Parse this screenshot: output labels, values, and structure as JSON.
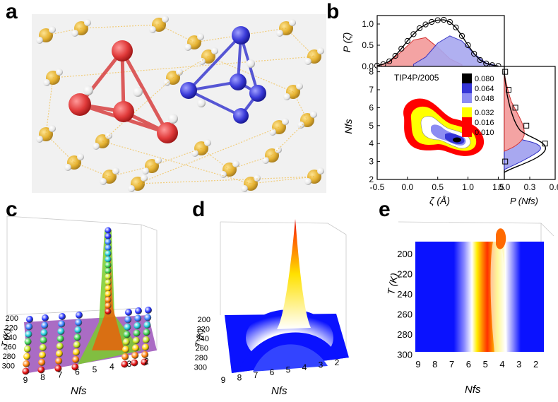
{
  "panels": {
    "a": {
      "letter": "a"
    },
    "b": {
      "letter": "b"
    },
    "c": {
      "letter": "c"
    },
    "d": {
      "letter": "d"
    },
    "e": {
      "letter": "e"
    }
  },
  "colors": {
    "red_cluster": "#e03a3a",
    "blue_cluster": "#3a3ad8",
    "oxygen": "#e2a91a",
    "hbond": "#f1b52d",
    "red": "#ff0000",
    "yellow": "#ffff00",
    "blue": "#0000ff",
    "black": "#000000"
  },
  "chart_data": [
    {
      "id": "b-top",
      "type": "area",
      "ylabel": "P (ζ)",
      "yticks": [
        "0.0",
        "0.5",
        "1.0"
      ],
      "ylim": [
        0,
        1.2
      ],
      "xlim": [
        -0.5,
        1.6
      ],
      "series": [
        {
          "name": "total",
          "x": [
            -0.5,
            -0.4,
            -0.3,
            -0.2,
            -0.1,
            0.0,
            0.1,
            0.2,
            0.3,
            0.4,
            0.5,
            0.6,
            0.7,
            0.8,
            0.9,
            1.0,
            1.1,
            1.2,
            1.3,
            1.4,
            1.5
          ],
          "values": [
            0.02,
            0.05,
            0.12,
            0.25,
            0.42,
            0.6,
            0.76,
            0.9,
            0.99,
            1.05,
            1.09,
            1.1,
            1.05,
            0.92,
            0.72,
            0.5,
            0.3,
            0.15,
            0.07,
            0.03,
            0.01
          ]
        },
        {
          "name": "red",
          "x": [
            -0.5,
            -0.3,
            -0.1,
            0.1,
            0.3,
            0.5,
            0.7,
            0.9
          ],
          "values": [
            0.02,
            0.1,
            0.35,
            0.62,
            0.68,
            0.45,
            0.18,
            0.04
          ]
        },
        {
          "name": "blue",
          "x": [
            0.1,
            0.3,
            0.5,
            0.7,
            0.9,
            1.1,
            1.3,
            1.5
          ],
          "values": [
            0.05,
            0.22,
            0.55,
            0.72,
            0.6,
            0.3,
            0.08,
            0.01
          ]
        }
      ]
    },
    {
      "id": "b-main",
      "type": "heatmap",
      "title": "TIP4P/2005",
      "xlabel": "ζ (Å)",
      "ylabel": "Nfs",
      "xticks": [
        "-0.5",
        "0.0",
        "0.5",
        "1.0",
        "1.5"
      ],
      "yticks": [
        "2",
        "3",
        "4",
        "5",
        "6",
        "7",
        "8"
      ],
      "xlim": [
        -0.5,
        1.6
      ],
      "ylim": [
        2,
        8.3
      ],
      "legend": [
        {
          "label": "0.080",
          "color": "#000000"
        },
        {
          "label": "0.064",
          "color": "#3636d6"
        },
        {
          "label": "0.048",
          "color": "#8c8cf2"
        },
        {
          "label": "0.032",
          "color": "#ffff00"
        },
        {
          "label": "0.016",
          "color": "#ff0000"
        },
        {
          "label": "0.010",
          "color": "#ff0000"
        }
      ]
    },
    {
      "id": "b-right",
      "type": "line",
      "xlabel": "P (Nfs)",
      "xticks": [
        "0.0",
        "0.3",
        "0.6"
      ],
      "xlim": [
        0,
        0.6
      ],
      "points": [
        {
          "n": 3,
          "p": 0.01
        },
        {
          "n": 4,
          "p": 0.48
        },
        {
          "n": 5,
          "p": 0.26
        },
        {
          "n": 6,
          "p": 0.13
        },
        {
          "n": 7,
          "p": 0.05
        },
        {
          "n": 8,
          "p": 0.01
        }
      ]
    },
    {
      "id": "c",
      "type": "scatter",
      "xlabel": "Nfs",
      "ylabel": "T (K)",
      "xticks": [
        "9",
        "8",
        "7",
        "6",
        "5",
        "4",
        "3",
        "2"
      ],
      "yticks": [
        "200",
        "220",
        "240",
        "260",
        "280",
        "300"
      ]
    },
    {
      "id": "d",
      "type": "area",
      "xlabel": "Nfs",
      "ylabel": "T (K)",
      "xticks": [
        "9",
        "8",
        "7",
        "6",
        "5",
        "4",
        "3",
        "2"
      ],
      "yticks": [
        "200",
        "220",
        "240",
        "260",
        "280",
        "300"
      ]
    },
    {
      "id": "e",
      "type": "heatmap",
      "xlabel": "Nfs",
      "ylabel": "T (K)",
      "xticks": [
        "9",
        "8",
        "7",
        "6",
        "5",
        "4",
        "3",
        "2"
      ],
      "yticks": [
        "200",
        "220",
        "240",
        "260",
        "280",
        "300"
      ]
    }
  ]
}
